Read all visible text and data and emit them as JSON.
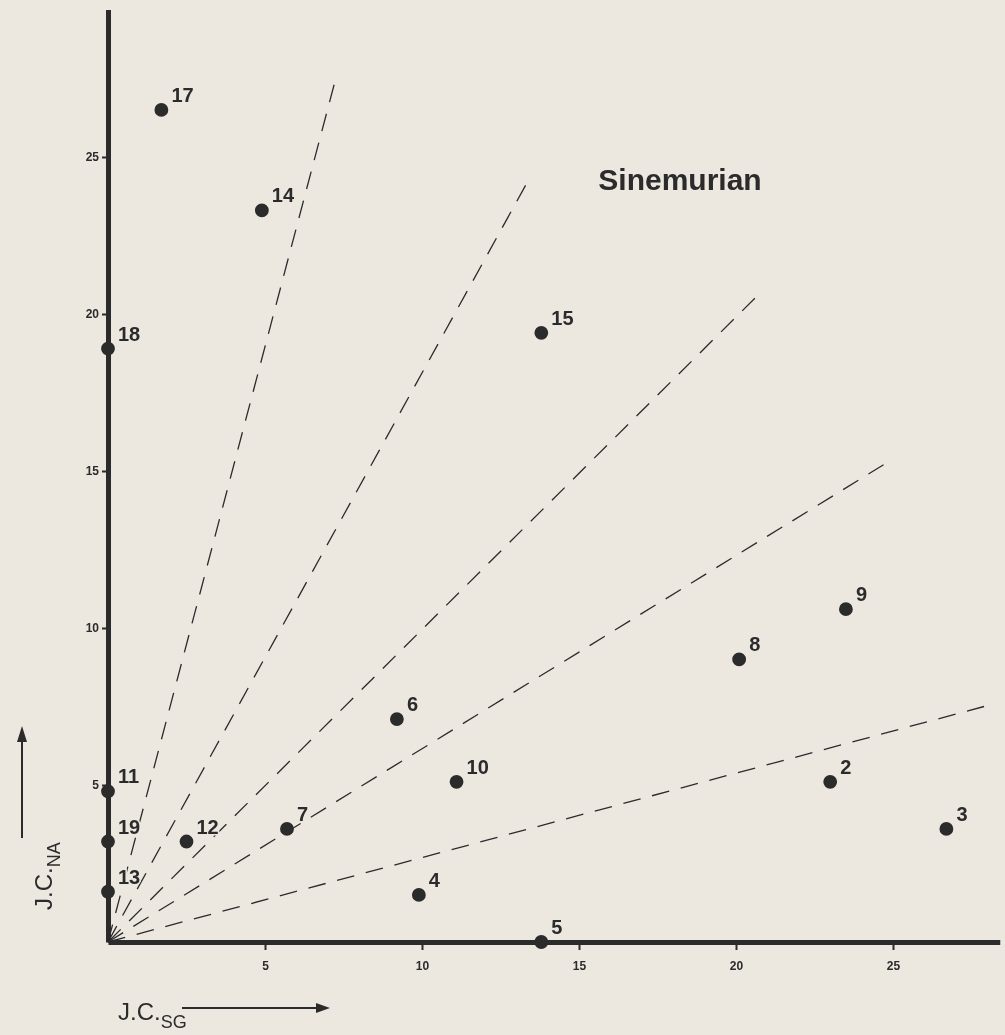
{
  "chart_data": {
    "type": "scatter",
    "title": "Sinemurian",
    "xlabel": "J.C.$_{SG}$",
    "ylabel": "J.C.$_{NA}$",
    "xlim": [
      0,
      28.4
    ],
    "ylim": [
      0,
      29.7
    ],
    "xticks": [
      5,
      10,
      15,
      20,
      25
    ],
    "yticks": [
      5,
      10,
      15,
      20,
      25
    ],
    "grid": false,
    "marker": "circle",
    "annotations": [
      {
        "text": "17",
        "x": 1.7,
        "y": 26.5
      },
      {
        "text": "14",
        "x": 4.9,
        "y": 23.3
      },
      {
        "text": "18",
        "x": 0,
        "y": 18.9
      },
      {
        "text": "15",
        "x": 13.8,
        "y": 19.4
      },
      {
        "text": "9",
        "x": 23.5,
        "y": 10.6
      },
      {
        "text": "8",
        "x": 20.1,
        "y": 9.0
      },
      {
        "text": "6",
        "x": 9.2,
        "y": 7.1
      },
      {
        "text": "10",
        "x": 11.1,
        "y": 5.1
      },
      {
        "text": "2",
        "x": 23.0,
        "y": 5.1
      },
      {
        "text": "3",
        "x": 26.7,
        "y": 3.6
      },
      {
        "text": "7",
        "x": 5.7,
        "y": 3.6
      },
      {
        "text": "12",
        "x": 2.5,
        "y": 3.2
      },
      {
        "text": "11",
        "x": 0,
        "y": 4.8
      },
      {
        "text": "19",
        "x": 0,
        "y": 3.2
      },
      {
        "text": "13",
        "x": 0,
        "y": 1.6
      },
      {
        "text": "4",
        "x": 9.9,
        "y": 1.5
      },
      {
        "text": "5",
        "x": 13.8,
        "y": 0
      }
    ],
    "series": [
      {
        "color": "#2b2b2b",
        "x": [
          1.7,
          4.9,
          0,
          13.8,
          23.5,
          20.1,
          9.2,
          11.1,
          23.0,
          26.7,
          5.7,
          2.5,
          0,
          0,
          0,
          9.9,
          13.8
        ],
        "values": [
          26.5,
          23.3,
          18.9,
          19.4,
          10.6,
          9.0,
          7.1,
          5.1,
          5.1,
          3.6,
          3.6,
          3.2,
          4.8,
          3.2,
          1.6,
          1.5,
          0
        ]
      },
      {
        "type": "line",
        "line_style": "dashed",
        "marker": "none",
        "color": "#2b2b2b",
        "x": [
          0,
          27.9
        ],
        "values": [
          0,
          7.5
        ]
      },
      {
        "type": "line",
        "line_style": "dashed",
        "marker": "none",
        "color": "#2b2b2b",
        "x": [
          0,
          24.7
        ],
        "values": [
          0,
          15.2
        ]
      },
      {
        "type": "line",
        "line_style": "dashed",
        "marker": "none",
        "color": "#2b2b2b",
        "x": [
          0,
          20.6
        ],
        "values": [
          0,
          20.5
        ]
      },
      {
        "type": "line",
        "line_style": "dashed",
        "marker": "none",
        "color": "#2b2b2b",
        "x": [
          0,
          13.3
        ],
        "values": [
          0,
          24.1
        ]
      },
      {
        "type": "line",
        "line_style": "dashed",
        "marker": "none",
        "color": "#2b2b2b",
        "x": [
          0,
          7.2
        ],
        "values": [
          0,
          27.3
        ]
      }
    ]
  }
}
